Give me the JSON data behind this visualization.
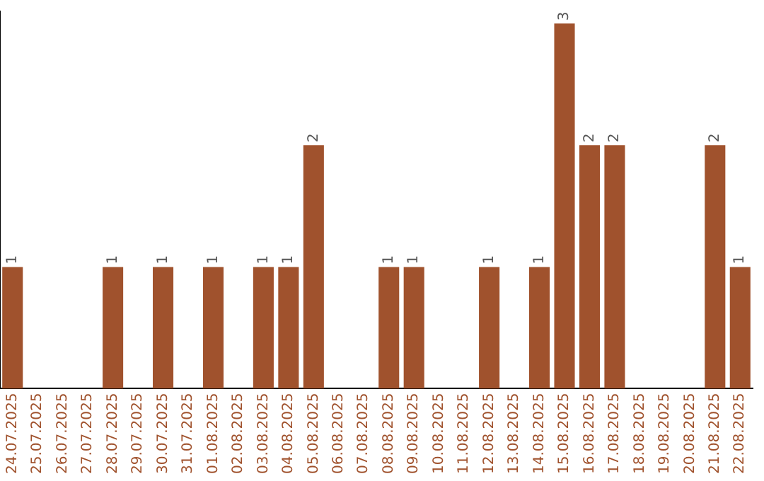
{
  "chart_data": {
    "type": "bar",
    "categories": [
      "24.07.2025",
      "25.07.2025",
      "26.07.2025",
      "27.07.2025",
      "28.07.2025",
      "29.07.2025",
      "30.07.2025",
      "31.07.2025",
      "01.08.2025",
      "02.08.2025",
      "03.08.2025",
      "04.08.2025",
      "05.08.2025",
      "06.08.2025",
      "07.08.2025",
      "08.08.2025",
      "09.08.2025",
      "10.08.2025",
      "11.08.2025",
      "12.08.2025",
      "13.08.2025",
      "14.08.2025",
      "15.08.2025",
      "16.08.2025",
      "17.08.2025",
      "18.08.2025",
      "19.08.2025",
      "20.08.2025",
      "21.08.2025",
      "22.08.2025"
    ],
    "values": [
      1,
      0,
      0,
      0,
      1,
      0,
      1,
      0,
      1,
      0,
      1,
      1,
      2,
      0,
      0,
      1,
      1,
      0,
      0,
      1,
      0,
      1,
      3,
      2,
      2,
      0,
      0,
      0,
      2,
      1
    ],
    "value_labels": [
      "1",
      null,
      null,
      null,
      "1",
      null,
      "1",
      null,
      "1",
      null,
      "1",
      "1",
      "2",
      null,
      null,
      "1",
      "1",
      null,
      null,
      "1",
      null,
      "1",
      "3",
      "2",
      "2",
      null,
      null,
      null,
      "2",
      "1"
    ],
    "color": "#a0522d",
    "ylim": [
      0,
      3.1
    ],
    "tick_labels": "x"
  }
}
